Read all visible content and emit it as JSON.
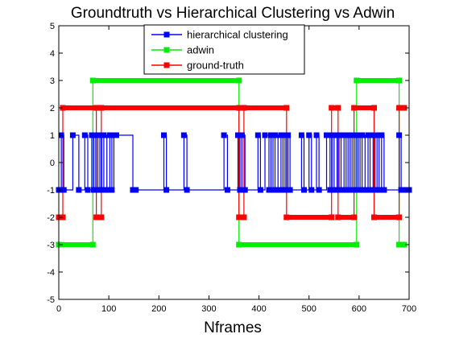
{
  "chart_data": {
    "type": "line",
    "title": "Groundtruth vs Hierarchical Clustering vs Adwin",
    "xlabel": "Nframes",
    "ylabel": "",
    "xlim": [
      0,
      700
    ],
    "ylim": [
      -5,
      5
    ],
    "xticks": [
      0,
      100,
      200,
      300,
      400,
      500,
      600,
      700
    ],
    "yticks": [
      -5,
      -4,
      -3,
      -2,
      -1,
      0,
      1,
      2,
      3,
      4,
      5
    ],
    "grid": false,
    "legend_position": "top-center",
    "series": [
      {
        "name": "hierarchical clustering",
        "color": "#0000ff",
        "marker": "square",
        "step": true,
        "x": [
          0,
          5,
          10,
          28,
          40,
          52,
          58,
          66,
          70,
          74,
          78,
          82,
          86,
          90,
          96,
          102,
          106,
          110,
          115,
          148,
          154,
          210,
          215,
          250,
          256,
          330,
          337,
          358,
          362,
          366,
          372,
          398,
          403,
          412,
          420,
          424,
          428,
          432,
          438,
          444,
          448,
          452,
          455,
          458,
          462,
          485,
          490,
          500,
          505,
          515,
          520,
          535,
          542,
          546,
          550,
          556,
          560,
          564,
          570,
          574,
          578,
          582,
          586,
          590,
          594,
          598,
          602,
          606,
          612,
          618,
          622,
          628,
          632,
          636,
          640,
          645,
          650,
          680,
          684,
          690,
          700
        ],
        "values": [
          -1,
          1,
          -1,
          1,
          -1,
          1,
          -1,
          1,
          -1,
          1,
          -1,
          1,
          -1,
          1,
          -1,
          1,
          -1,
          1,
          1,
          -1,
          -1,
          1,
          -1,
          1,
          -1,
          1,
          -1,
          1,
          -1,
          1,
          -1,
          1,
          -1,
          1,
          -1,
          1,
          -1,
          1,
          -1,
          1,
          -1,
          1,
          -1,
          1,
          -1,
          1,
          -1,
          1,
          -1,
          1,
          -1,
          1,
          -1,
          1,
          -1,
          1,
          -1,
          1,
          -1,
          1,
          -1,
          1,
          -1,
          1,
          -1,
          1,
          -1,
          1,
          -1,
          1,
          -1,
          1,
          -1,
          1,
          -1,
          1,
          -1,
          1,
          -1,
          -1,
          -1
        ]
      },
      {
        "name": "adwin",
        "color": "#00ee00",
        "marker": "square",
        "step": true,
        "x": [
          0,
          68,
          68,
          360,
          360,
          595,
          595,
          680,
          680,
          690
        ],
        "values": [
          -3,
          -3,
          3,
          3,
          -3,
          -3,
          3,
          3,
          -3,
          -3
        ]
      },
      {
        "name": "ground-truth",
        "color": "#ff0000",
        "marker": "square",
        "step": true,
        "x": [
          0,
          8,
          8,
          75,
          75,
          85,
          85,
          360,
          360,
          370,
          370,
          455,
          455,
          545,
          545,
          558,
          558,
          590,
          590,
          630,
          630,
          680,
          680,
          690
        ],
        "values": [
          -2,
          -2,
          2,
          2,
          -2,
          -2,
          2,
          2,
          -2,
          -2,
          2,
          2,
          -2,
          -2,
          2,
          2,
          -2,
          -2,
          2,
          2,
          -2,
          -2,
          2,
          2
        ]
      }
    ]
  }
}
